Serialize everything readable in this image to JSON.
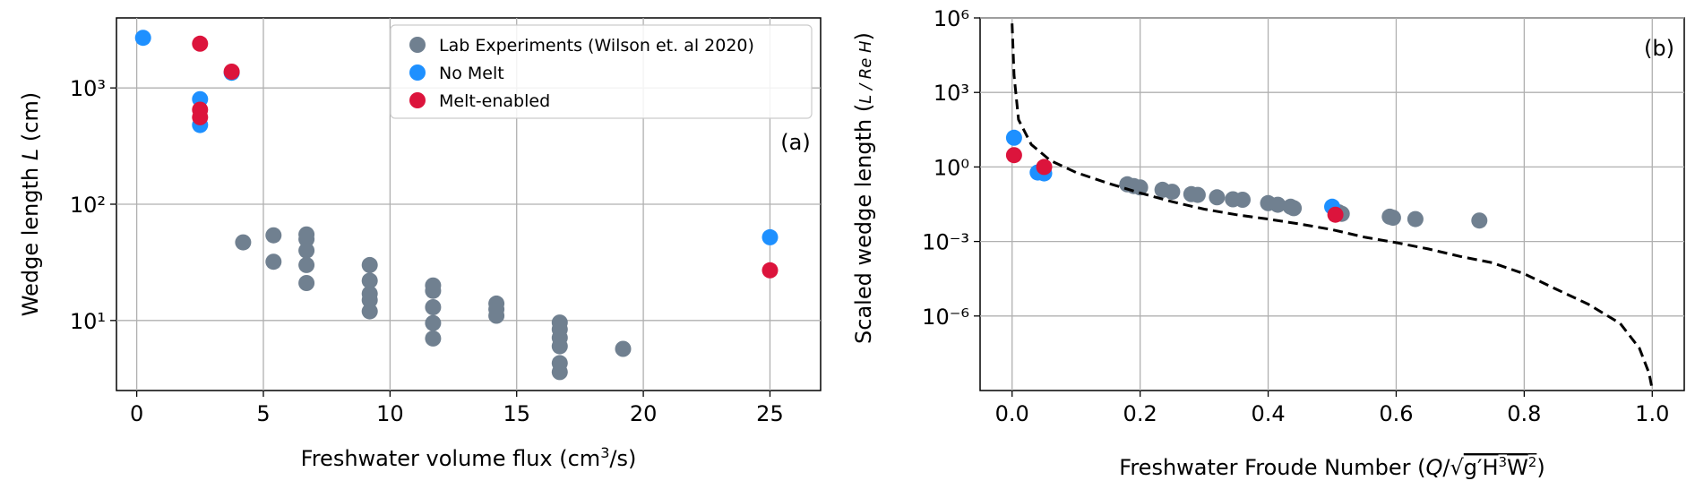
{
  "chart_data": [
    {
      "type": "scatter",
      "panel_label": "(a)",
      "xlabel": "Freshwater volume flux (cm³/s)",
      "ylabel": "Wedge length L (cm)",
      "xlim": [
        -0.8,
        27
      ],
      "ylim": [
        2.5,
        4000
      ],
      "yscale": "log",
      "grid": true,
      "legend_position": "top-right",
      "x_ticks": [
        0,
        5,
        10,
        15,
        20,
        25
      ],
      "x_tick_labels": [
        "0",
        "5",
        "10",
        "15",
        "20",
        "25"
      ],
      "y_ticks": [
        10,
        100,
        1000
      ],
      "y_tick_labels": [
        "10¹",
        "10²",
        "10³"
      ],
      "series": [
        {
          "name": "Lab Experiments (Wilson et. al 2020)",
          "color": "#708090",
          "points": [
            [
              4.2,
              47
            ],
            [
              5.4,
              54
            ],
            [
              5.4,
              32
            ],
            [
              6.7,
              55
            ],
            [
              6.7,
              50
            ],
            [
              6.7,
              40
            ],
            [
              6.7,
              30
            ],
            [
              6.7,
              21
            ],
            [
              9.2,
              30
            ],
            [
              9.2,
              22
            ],
            [
              9.2,
              17
            ],
            [
              9.2,
              15
            ],
            [
              9.2,
              12
            ],
            [
              11.7,
              20
            ],
            [
              11.7,
              18
            ],
            [
              11.7,
              13
            ],
            [
              11.7,
              9.5
            ],
            [
              11.7,
              7
            ],
            [
              14.2,
              14
            ],
            [
              14.2,
              12.5
            ],
            [
              14.2,
              11
            ],
            [
              16.7,
              9.6
            ],
            [
              16.7,
              8.4
            ],
            [
              16.7,
              7.1
            ],
            [
              16.7,
              6
            ],
            [
              16.7,
              4.3
            ],
            [
              16.7,
              3.6
            ],
            [
              19.2,
              5.7
            ]
          ]
        },
        {
          "name": "No Melt",
          "color": "#1e90ff",
          "points": [
            [
              0.25,
              2700
            ],
            [
              2.5,
              800
            ],
            [
              2.5,
              480
            ],
            [
              3.75,
              1350
            ],
            [
              25,
              52
            ]
          ]
        },
        {
          "name": "Melt-enabled",
          "color": "#dc143c",
          "points": [
            [
              2.5,
              2400
            ],
            [
              2.5,
              650
            ],
            [
              2.5,
              560
            ],
            [
              3.75,
              1380
            ],
            [
              25,
              27
            ]
          ]
        }
      ]
    },
    {
      "type": "scatter",
      "panel_label": "(b)",
      "xlabel": "Freshwater Froude Number (Q/√(g′H³W²))",
      "ylabel": "Scaled wedge length (L / Re H)",
      "xlim": [
        -0.05,
        1.05
      ],
      "ylim": [
        1e-09,
        1000000.0
      ],
      "yscale": "log",
      "grid": true,
      "x_ticks": [
        0,
        0.2,
        0.4,
        0.6,
        0.8,
        1.0
      ],
      "x_tick_labels": [
        "0.0",
        "0.2",
        "0.4",
        "0.6",
        "0.8",
        "1.0"
      ],
      "y_ticks": [
        1e-06,
        0.001,
        1,
        1000,
        1000000
      ],
      "y_tick_labels": [
        "10⁻⁶",
        "10⁻³",
        "10⁰",
        "10³",
        "10⁶"
      ],
      "series": [
        {
          "name": "Lab Experiments (Wilson et. al 2020)",
          "color": "#708090",
          "points": [
            [
              0.18,
              0.2
            ],
            [
              0.19,
              0.17
            ],
            [
              0.2,
              0.15
            ],
            [
              0.235,
              0.12
            ],
            [
              0.25,
              0.1
            ],
            [
              0.28,
              0.08
            ],
            [
              0.29,
              0.075
            ],
            [
              0.32,
              0.06
            ],
            [
              0.345,
              0.05
            ],
            [
              0.36,
              0.048
            ],
            [
              0.4,
              0.035
            ],
            [
              0.415,
              0.03
            ],
            [
              0.435,
              0.025
            ],
            [
              0.44,
              0.022
            ],
            [
              0.51,
              0.015
            ],
            [
              0.515,
              0.013
            ],
            [
              0.59,
              0.01
            ],
            [
              0.595,
              0.009
            ],
            [
              0.63,
              0.008
            ],
            [
              0.73,
              0.007
            ]
          ]
        },
        {
          "name": "No Melt",
          "color": "#1e90ff",
          "points": [
            [
              0.003,
              15
            ],
            [
              0.04,
              0.6
            ],
            [
              0.05,
              0.55
            ],
            [
              0.5,
              0.025
            ]
          ]
        },
        {
          "name": "Melt-enabled",
          "color": "#dc143c",
          "points": [
            [
              0.003,
              3
            ],
            [
              0.05,
              1
            ],
            [
              0.505,
              0.012
            ]
          ]
        },
        {
          "name": "",
          "style": "dashed",
          "color": "#000000",
          "points": [
            [
              0.0,
              600000.0
            ],
            [
              0.003,
              5000.0
            ],
            [
              0.01,
              80
            ],
            [
              0.03,
              8
            ],
            [
              0.06,
              1.8
            ],
            [
              0.1,
              0.6
            ],
            [
              0.15,
              0.22
            ],
            [
              0.2,
              0.09
            ],
            [
              0.25,
              0.04
            ],
            [
              0.3,
              0.02
            ],
            [
              0.35,
              0.012
            ],
            [
              0.4,
              0.008
            ],
            [
              0.45,
              0.005
            ],
            [
              0.5,
              0.003
            ],
            [
              0.55,
              0.0015
            ],
            [
              0.6,
              0.0009
            ],
            [
              0.65,
              0.0005
            ],
            [
              0.7,
              0.00025
            ],
            [
              0.75,
              0.00014
            ],
            [
              0.8,
              5e-05
            ],
            [
              0.85,
              1.2e-05
            ],
            [
              0.9,
              3e-06
            ],
            [
              0.95,
              5e-07
            ],
            [
              0.98,
              5e-08
            ],
            [
              0.995,
              5e-09
            ],
            [
              1.0,
              1.1e-09
            ]
          ]
        }
      ]
    }
  ]
}
